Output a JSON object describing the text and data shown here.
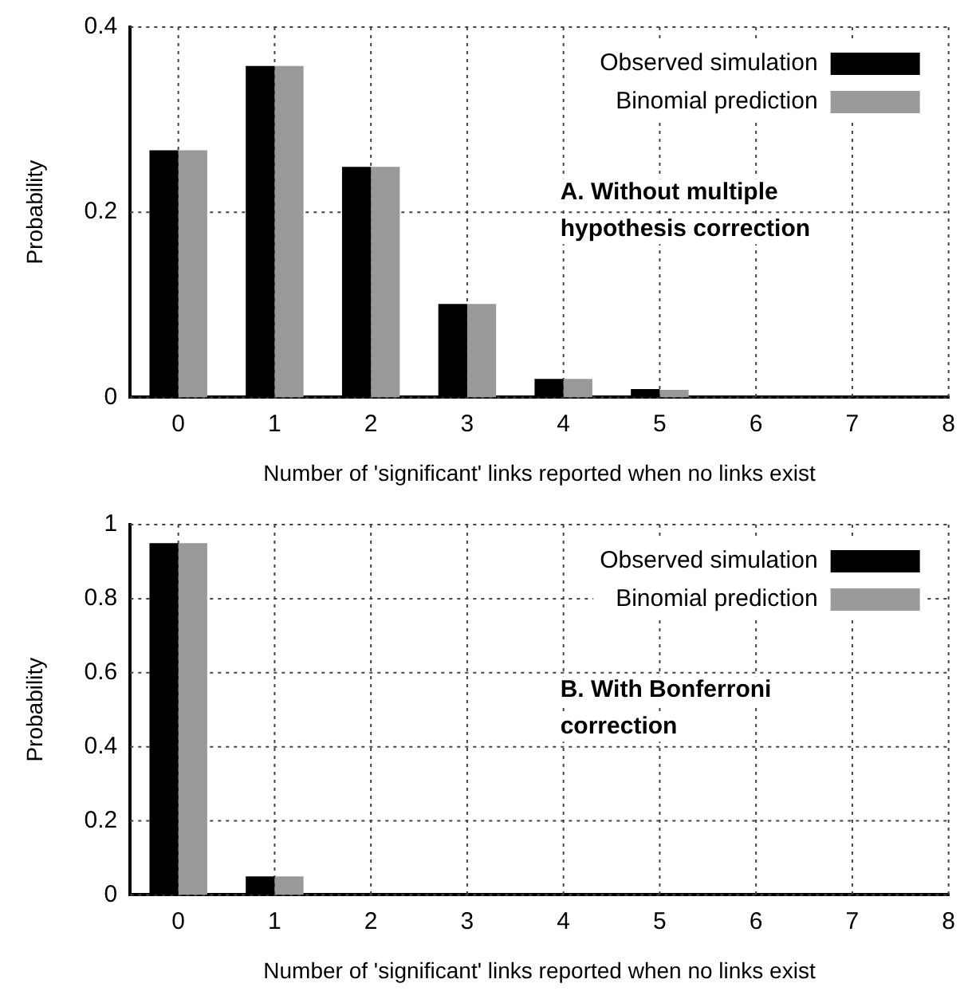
{
  "chart_data": [
    {
      "type": "bar",
      "xlabel": "Number of 'significant' links reported when no links exist",
      "ylabel": "Probability",
      "x": [
        0,
        1,
        2,
        3,
        4,
        5
      ],
      "xlim": [
        -0.5,
        8
      ],
      "xticks": [
        0,
        1,
        2,
        3,
        4,
        5,
        6,
        7,
        8
      ],
      "ylim": [
        0,
        0.4
      ],
      "yticks": [
        0,
        0.2,
        0.4
      ],
      "grid": true,
      "legend": "top right",
      "annotations": [
        "A. Without multiple\nhypothesis correction"
      ],
      "series": [
        {
          "name": "Observed simulation",
          "color": "#000000",
          "values": [
            0.267,
            0.358,
            0.249,
            0.101,
            0.02,
            0.009
          ]
        },
        {
          "name": "Binomial prediction",
          "color": "#999999",
          "values": [
            0.267,
            0.358,
            0.249,
            0.101,
            0.02,
            0.008
          ]
        }
      ]
    },
    {
      "type": "bar",
      "xlabel": "Number of 'significant' links reported when no links exist",
      "ylabel": "Probability",
      "x": [
        0,
        1
      ],
      "xlim": [
        -0.5,
        8
      ],
      "xticks": [
        0,
        1,
        2,
        3,
        4,
        5,
        6,
        7,
        8
      ],
      "ylim": [
        0,
        1
      ],
      "yticks": [
        0,
        0.2,
        0.4,
        0.6,
        0.8,
        1
      ],
      "grid": true,
      "legend": "top right",
      "annotations": [
        "B. With Bonferroni\ncorrection"
      ],
      "series": [
        {
          "name": "Observed simulation",
          "color": "#000000",
          "values": [
            0.95,
            0.05
          ]
        },
        {
          "name": "Binomial prediction",
          "color": "#999999",
          "values": [
            0.95,
            0.05
          ]
        }
      ]
    }
  ]
}
